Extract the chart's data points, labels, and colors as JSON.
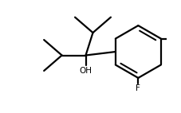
{
  "bg_color": "#ffffff",
  "line_color": "#000000",
  "line_width": 1.6,
  "font_size_label": 7.5,
  "oh_label": "OH",
  "f_label": "F",
  "figsize": [
    2.27,
    1.42
  ],
  "dpi": 100
}
